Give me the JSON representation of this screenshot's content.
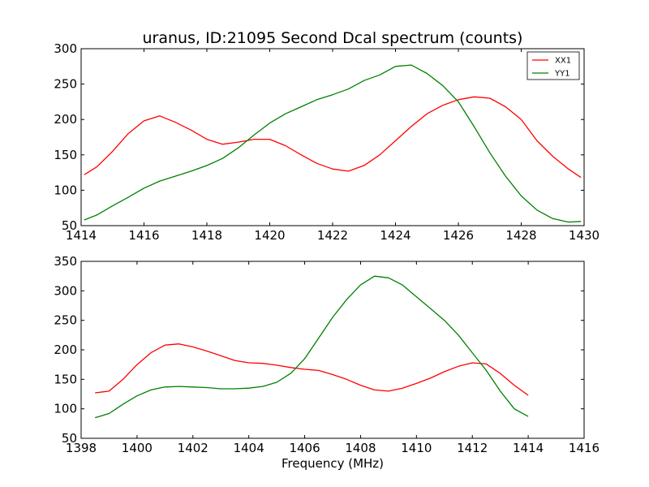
{
  "figure": {
    "title": "uranus, ID:21095 Second Dcal spectrum (counts)",
    "xlabel": "Frequency (MHz)"
  },
  "chart_data": [
    {
      "type": "line",
      "title": "uranus, ID:21095 Second Dcal spectrum (counts)",
      "xlabel": "",
      "ylabel": "",
      "xlim": [
        1414,
        1430
      ],
      "ylim": [
        50,
        300
      ],
      "xticks": [
        1414,
        1416,
        1418,
        1420,
        1422,
        1424,
        1426,
        1428,
        1430
      ],
      "yticks": [
        50,
        100,
        150,
        200,
        250,
        300
      ],
      "grid": false,
      "legend": {
        "placement": "top-right",
        "entries": [
          "XX1",
          "YY1"
        ]
      },
      "series": [
        {
          "name": "XX1",
          "color": "#ff0000",
          "x": [
            1414.1,
            1414.5,
            1415.0,
            1415.5,
            1416.0,
            1416.5,
            1417.0,
            1417.5,
            1418.0,
            1418.5,
            1419.0,
            1419.5,
            1420.0,
            1420.5,
            1421.0,
            1421.5,
            1422.0,
            1422.5,
            1423.0,
            1423.5,
            1424.0,
            1424.5,
            1425.0,
            1425.5,
            1426.0,
            1426.5,
            1427.0,
            1427.5,
            1428.0,
            1428.5,
            1429.0,
            1429.5,
            1429.9
          ],
          "y": [
            122,
            133,
            155,
            180,
            198,
            205,
            196,
            185,
            172,
            165,
            168,
            172,
            172,
            163,
            150,
            138,
            130,
            127,
            135,
            150,
            170,
            190,
            208,
            220,
            228,
            232,
            230,
            218,
            200,
            170,
            148,
            130,
            118
          ]
        },
        {
          "name": "YY1",
          "color": "#008000",
          "x": [
            1414.1,
            1414.5,
            1415.0,
            1415.5,
            1416.0,
            1416.5,
            1417.0,
            1417.5,
            1418.0,
            1418.5,
            1419.0,
            1419.5,
            1420.0,
            1420.5,
            1421.0,
            1421.5,
            1422.0,
            1422.5,
            1423.0,
            1423.5,
            1424.0,
            1424.5,
            1425.0,
            1425.5,
            1426.0,
            1426.5,
            1427.0,
            1427.5,
            1428.0,
            1428.5,
            1429.0,
            1429.5,
            1429.9
          ],
          "y": [
            58,
            65,
            78,
            90,
            103,
            113,
            120,
            127,
            135,
            145,
            160,
            178,
            195,
            208,
            218,
            228,
            235,
            243,
            255,
            263,
            275,
            277,
            265,
            248,
            225,
            190,
            153,
            120,
            92,
            72,
            60,
            55,
            56
          ]
        }
      ]
    },
    {
      "type": "line",
      "title": "",
      "xlabel": "Frequency (MHz)",
      "ylabel": "",
      "xlim": [
        1398,
        1416
      ],
      "ylim": [
        50,
        350
      ],
      "xticks": [
        1398,
        1400,
        1402,
        1404,
        1406,
        1408,
        1410,
        1412,
        1414,
        1416
      ],
      "yticks": [
        50,
        100,
        150,
        200,
        250,
        300,
        350
      ],
      "grid": false,
      "series": [
        {
          "color": "#ff0000",
          "x": [
            1398.5,
            1399.0,
            1399.5,
            1400.0,
            1400.5,
            1401.0,
            1401.5,
            1402.0,
            1402.5,
            1403.0,
            1403.5,
            1404.0,
            1404.5,
            1405.0,
            1405.5,
            1406.0,
            1406.5,
            1407.0,
            1407.5,
            1408.0,
            1408.5,
            1409.0,
            1409.5,
            1410.0,
            1410.5,
            1411.0,
            1411.5,
            1412.0,
            1412.5,
            1413.0,
            1413.5,
            1414.0
          ],
          "y": [
            127,
            130,
            150,
            175,
            195,
            208,
            210,
            205,
            198,
            190,
            182,
            178,
            177,
            174,
            170,
            167,
            165,
            158,
            150,
            140,
            132,
            130,
            135,
            143,
            152,
            163,
            172,
            178,
            176,
            160,
            140,
            123
          ]
        },
        {
          "color": "#008000",
          "x": [
            1398.5,
            1399.0,
            1399.5,
            1400.0,
            1400.5,
            1401.0,
            1401.5,
            1402.0,
            1402.5,
            1403.0,
            1403.5,
            1404.0,
            1404.5,
            1405.0,
            1405.5,
            1406.0,
            1406.5,
            1407.0,
            1407.5,
            1408.0,
            1408.5,
            1409.0,
            1409.5,
            1410.0,
            1410.5,
            1411.0,
            1411.5,
            1412.0,
            1412.5,
            1413.0,
            1413.5,
            1414.0
          ],
          "y": [
            85,
            92,
            108,
            122,
            132,
            137,
            138,
            137,
            136,
            134,
            134,
            135,
            138,
            145,
            160,
            185,
            220,
            255,
            285,
            310,
            325,
            322,
            310,
            290,
            270,
            250,
            225,
            195,
            165,
            130,
            100,
            87
          ]
        }
      ]
    }
  ]
}
